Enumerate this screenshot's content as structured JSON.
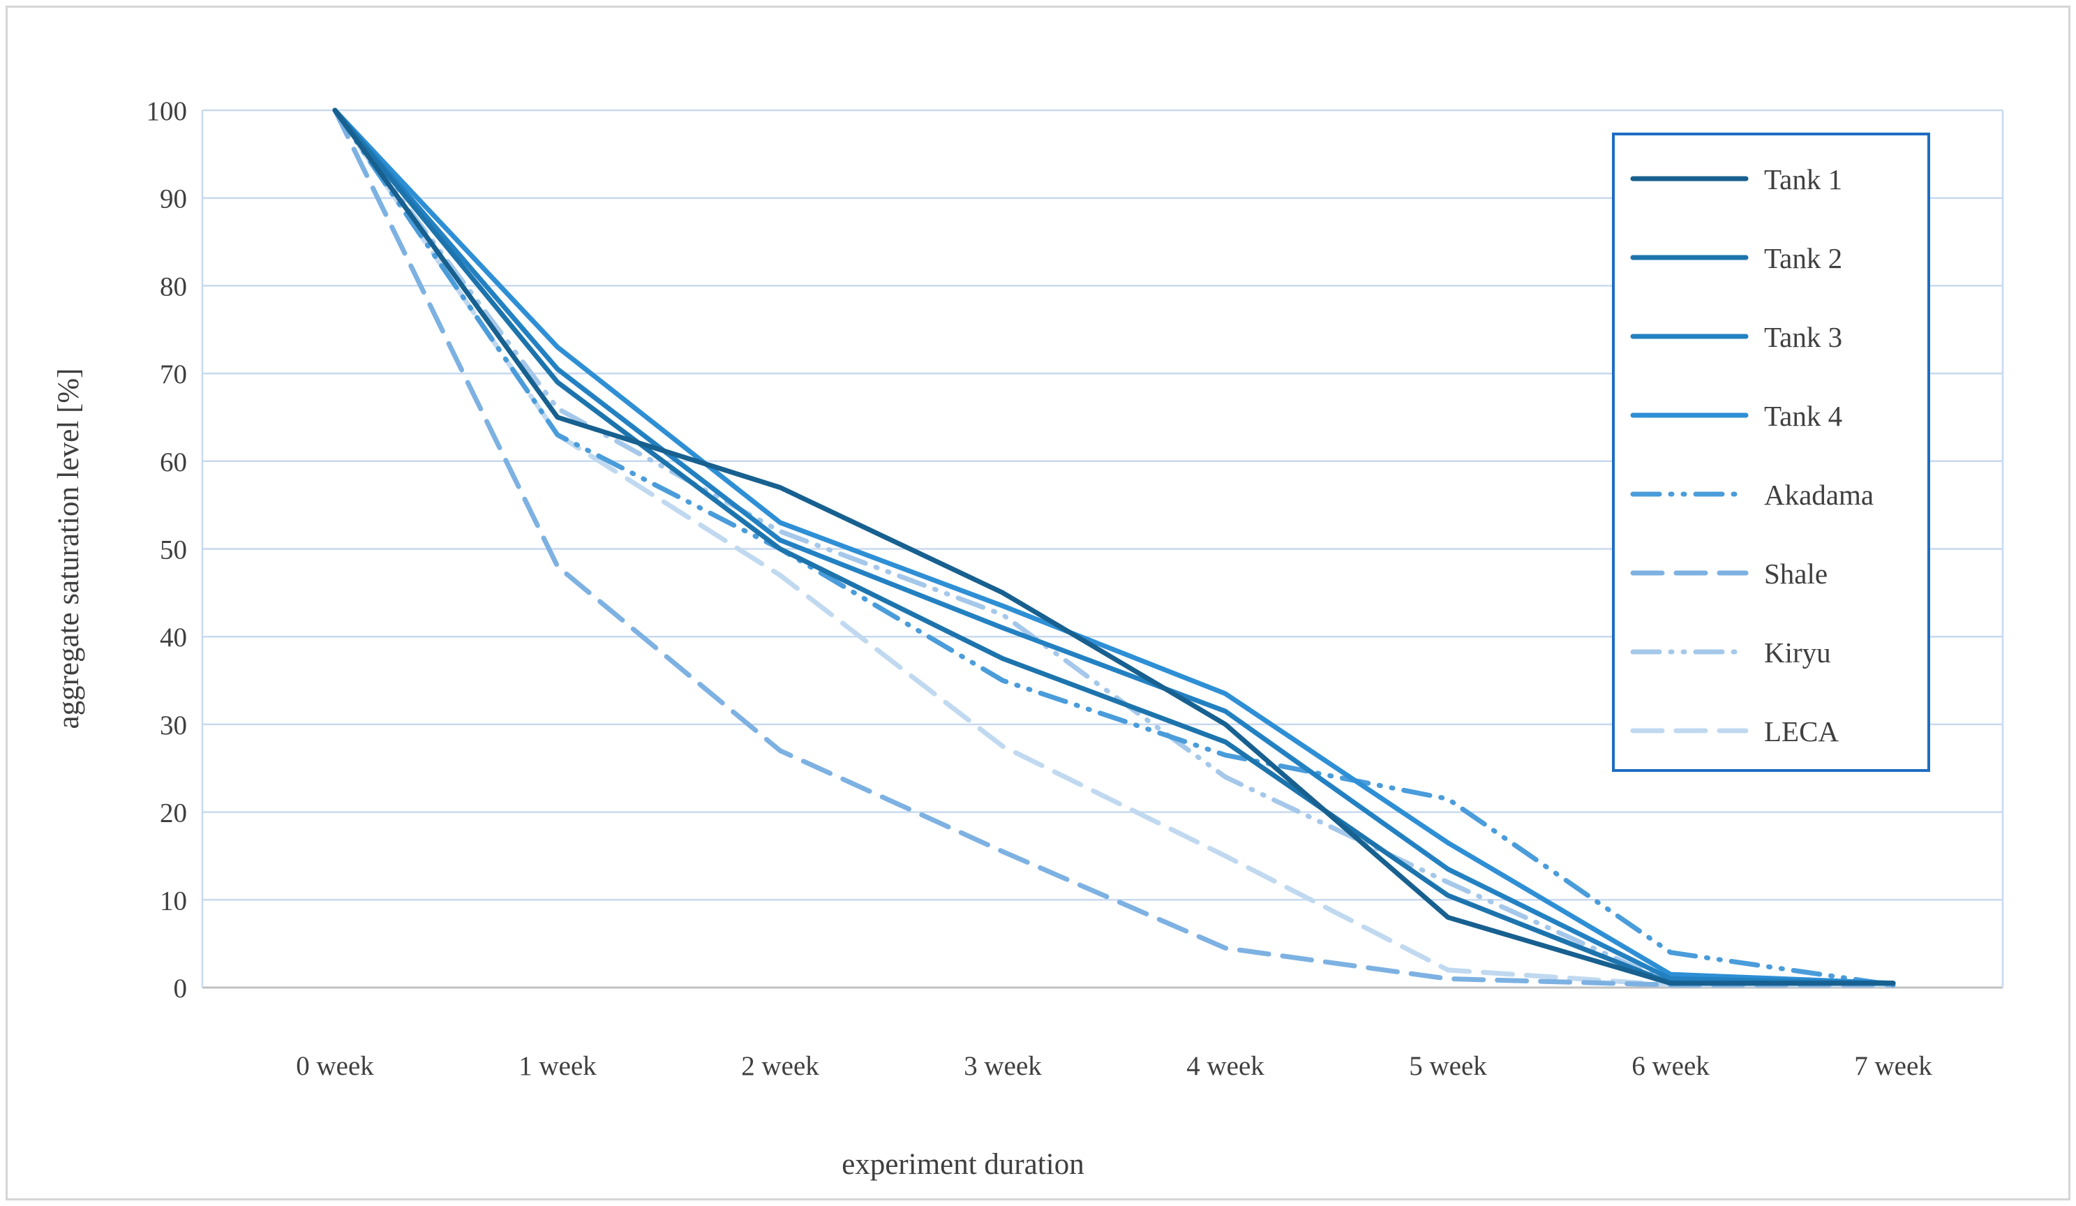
{
  "chart_data": {
    "type": "line",
    "title": "",
    "xlabel": "experiment duration",
    "ylabel": "aggregate saturation level [%]",
    "x_categories": [
      "0 week",
      "1 week",
      "2 week",
      "3 week",
      "4 week",
      "5 week",
      "6 week",
      "7 week"
    ],
    "ylim": [
      0,
      100
    ],
    "y_ticks": [
      0,
      10,
      20,
      30,
      40,
      50,
      60,
      70,
      80,
      90,
      100
    ],
    "grid": "horizontal",
    "legend_position": "upper right",
    "series": [
      {
        "name": "Tank 1",
        "color": "#17608f",
        "style": "solid",
        "values": [
          100,
          65,
          57,
          45,
          30,
          8,
          0.5,
          0.5
        ]
      },
      {
        "name": "Tank 2",
        "color": "#1d74ad",
        "style": "solid",
        "values": [
          100,
          69,
          50,
          37.5,
          28,
          10.5,
          0.5,
          0.5
        ]
      },
      {
        "name": "Tank 3",
        "color": "#2381c2",
        "style": "solid",
        "values": [
          100,
          70.5,
          51,
          41,
          31.5,
          13.5,
          1,
          0.5
        ]
      },
      {
        "name": "Tank 4",
        "color": "#2e8fd5",
        "style": "solid",
        "values": [
          100,
          73,
          53,
          43.5,
          33.5,
          16.5,
          1.5,
          0.5
        ]
      },
      {
        "name": "Akadama",
        "color": "#4a9cda",
        "style": "dash-dot-dot",
        "values": [
          100,
          63,
          50,
          35,
          26.5,
          21.5,
          4,
          0.3
        ]
      },
      {
        "name": "Shale",
        "color": "#7db1e2",
        "style": "dash",
        "values": [
          100,
          48,
          27,
          15.5,
          4.5,
          1,
          0.3,
          0.3
        ]
      },
      {
        "name": "Kiryu",
        "color": "#a5c8ea",
        "style": "dash-dot-dot",
        "values": [
          100,
          66,
          52,
          42.5,
          24,
          12,
          0.5,
          0.5
        ]
      },
      {
        "name": "LECA",
        "color": "#c0d9f0",
        "style": "dash",
        "values": [
          100,
          63,
          47,
          27.5,
          15,
          2,
          0.3,
          0.3
        ]
      }
    ]
  },
  "styles": {
    "gridline_color": "#c8d9ef",
    "plot_border_color": "#c8d9ef",
    "zero_axis_color": "#c1c1c1",
    "text_color": "#3f3f3f",
    "legend_border_color": "#1e6dc2",
    "figure_border_color": "#d6d6d6",
    "background": "#ffffff"
  }
}
